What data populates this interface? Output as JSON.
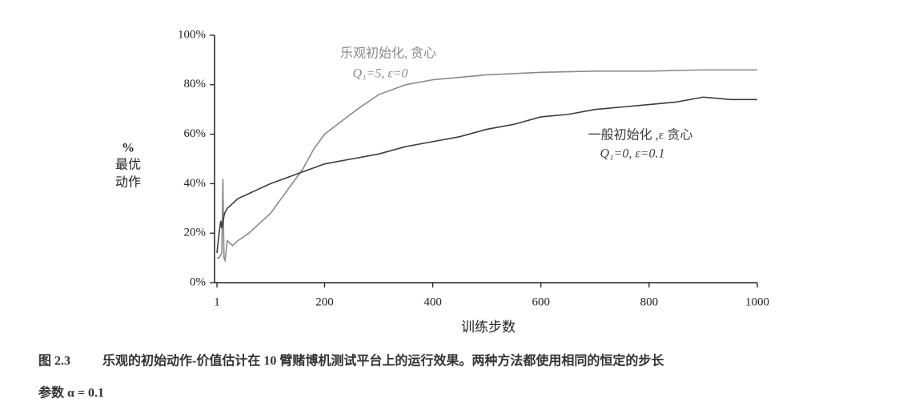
{
  "chart_data": {
    "type": "line",
    "xlabel": "训练步数",
    "ylabel": [
      "%",
      "最优",
      "动作"
    ],
    "xlim": [
      1,
      1000
    ],
    "xticks": [
      1,
      200,
      400,
      600,
      800,
      1000
    ],
    "ylim": [
      0,
      100
    ],
    "yticks": [
      {
        "value": 0,
        "label": "0%"
      },
      {
        "value": 20,
        "label": "20%"
      },
      {
        "value": 40,
        "label": "40%"
      },
      {
        "value": 60,
        "label": "60%"
      },
      {
        "value": 80,
        "label": "80%"
      },
      {
        "value": 100,
        "label": "100%"
      }
    ],
    "series": [
      {
        "name": "乐观初始化, 贪心",
        "params": "Q₁=5,  ε=0",
        "color": "#8a8a8a",
        "x": [
          1,
          5,
          10,
          12,
          14,
          16,
          20,
          30,
          40,
          60,
          80,
          100,
          120,
          140,
          160,
          180,
          200,
          230,
          260,
          300,
          350,
          400,
          450,
          500,
          600,
          700,
          800,
          900,
          1000
        ],
        "values": [
          10,
          10,
          12,
          42,
          10,
          9,
          17,
          15,
          17,
          20,
          24,
          28,
          34,
          40,
          46,
          54,
          60,
          65,
          70,
          76,
          80,
          82,
          83,
          84,
          85,
          85.5,
          85.5,
          86,
          86
        ]
      },
      {
        "name": "一般初始化 ,ε 贪心",
        "params": "Q₁=0,  ε=0.1",
        "color": "#3c3c3c",
        "x": [
          1,
          5,
          8,
          10,
          15,
          20,
          40,
          60,
          80,
          100,
          150,
          200,
          250,
          300,
          350,
          400,
          450,
          500,
          550,
          600,
          650,
          700,
          750,
          800,
          850,
          900,
          950,
          1000
        ],
        "values": [
          12,
          20,
          25,
          22,
          28,
          30,
          34,
          36,
          38,
          40,
          44,
          48,
          50,
          52,
          55,
          57,
          59,
          62,
          64,
          67,
          68,
          70,
          71,
          72,
          73,
          75,
          74,
          74
        ]
      }
    ]
  },
  "caption": {
    "label": "图 2.3",
    "lines": [
      "乐观的初始动作-价值估计在 10 臂赌博机测试平台上的运行效果。两种方法都使用相同的恒定的步长",
      "参数 α = 0.1"
    ]
  }
}
